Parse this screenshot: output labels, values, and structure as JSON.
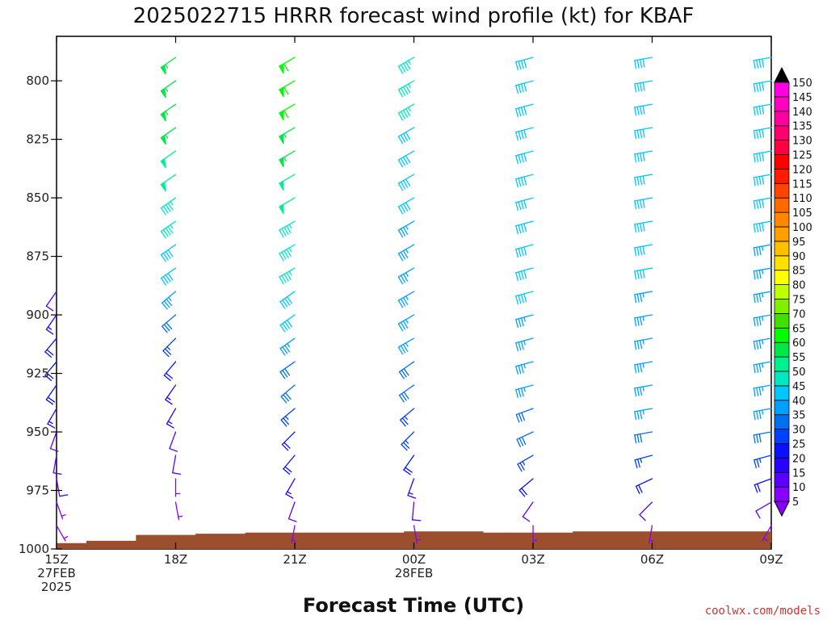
{
  "chart_data": {
    "type": "wind-profile",
    "title": "2025022715 HRRR forecast wind profile (kt) for KBAF",
    "xlabel": "Forecast Time (UTC)",
    "credit": "coolwx.com/models",
    "y_ticks": [
      800,
      825,
      850,
      875,
      900,
      925,
      950,
      975,
      1000
    ],
    "ylim": [
      1000,
      781
    ],
    "x_ticks": [
      {
        "h": 0,
        "lines": [
          "15Z",
          "27FEB",
          "2025"
        ]
      },
      {
        "h": 3,
        "lines": [
          "18Z"
        ]
      },
      {
        "h": 6,
        "lines": [
          "21Z"
        ]
      },
      {
        "h": 9,
        "lines": [
          "00Z",
          "28FEB"
        ]
      },
      {
        "h": 12,
        "lines": [
          "03Z"
        ]
      },
      {
        "h": 15,
        "lines": [
          "06Z"
        ]
      },
      {
        "h": 18,
        "lines": [
          "09Z"
        ]
      }
    ],
    "xlim": [
      0,
      18
    ],
    "profile_hours": [
      0,
      3,
      6,
      9,
      12,
      15,
      18
    ],
    "surface_pressure": [
      {
        "h": 0,
        "p": 997.5
      },
      {
        "h": 0.75,
        "p": 996.5
      },
      {
        "h": 2.0,
        "p": 994.0
      },
      {
        "h": 3.5,
        "p": 993.5
      },
      {
        "h": 4.75,
        "p": 993.0
      },
      {
        "h": 8.75,
        "p": 992.5
      },
      {
        "h": 10.75,
        "p": 993.0
      },
      {
        "h": 13.0,
        "p": 992.5
      },
      {
        "h": 18,
        "p": 992.5
      }
    ],
    "ground_color": "#9b4f2c",
    "colorbar": {
      "ticks": [
        5,
        10,
        15,
        20,
        25,
        30,
        35,
        40,
        45,
        50,
        55,
        60,
        65,
        70,
        75,
        80,
        85,
        90,
        95,
        100,
        105,
        110,
        115,
        120,
        125,
        130,
        135,
        140,
        145,
        150
      ],
      "colors": [
        "#8800ff",
        "#5a00ff",
        "#2a00ff",
        "#0a10ff",
        "#0040ff",
        "#0070f0",
        "#00a0ff",
        "#00c8ff",
        "#00e8c0",
        "#00f090",
        "#00e848",
        "#00ff00",
        "#40e000",
        "#80f000",
        "#c0ff00",
        "#ffff00",
        "#ffe000",
        "#ffc000",
        "#ffa000",
        "#ff8800",
        "#ff6a00",
        "#ff4400",
        "#ff1a00",
        "#ff0000",
        "#ff0040",
        "#ff0070",
        "#ff00a0",
        "#ff00c0",
        "#ff00e0",
        "#000000"
      ]
    },
    "wind_levels": [
      790,
      800,
      810,
      820,
      830,
      840,
      850,
      860,
      870,
      880,
      890,
      900,
      910,
      920,
      930,
      940,
      950,
      960,
      970,
      980,
      990
    ],
    "wind_profiles": [
      {
        "h": 0,
        "barbs": [
          {
            "p": 890,
            "dir": 215,
            "spd": 10
          },
          {
            "p": 900,
            "dir": 215,
            "spd": 15
          },
          {
            "p": 910,
            "dir": 220,
            "spd": 20
          },
          {
            "p": 920,
            "dir": 220,
            "spd": 20
          },
          {
            "p": 930,
            "dir": 215,
            "spd": 20
          },
          {
            "p": 940,
            "dir": 210,
            "spd": 15
          },
          {
            "p": 950,
            "dir": 200,
            "spd": 10
          },
          {
            "p": 960,
            "dir": 190,
            "spd": 10
          },
          {
            "p": 970,
            "dir": 170,
            "spd": 10
          },
          {
            "p": 980,
            "dir": 160,
            "spd": 5
          },
          {
            "p": 990,
            "dir": 150,
            "spd": 5
          }
        ]
      },
      {
        "h": 3,
        "barbs": [
          {
            "p": 790,
            "dir": 235,
            "spd": 55
          },
          {
            "p": 800,
            "dir": 235,
            "spd": 55
          },
          {
            "p": 810,
            "dir": 235,
            "spd": 55
          },
          {
            "p": 820,
            "dir": 235,
            "spd": 55
          },
          {
            "p": 830,
            "dir": 235,
            "spd": 50
          },
          {
            "p": 840,
            "dir": 235,
            "spd": 50
          },
          {
            "p": 850,
            "dir": 235,
            "spd": 45
          },
          {
            "p": 860,
            "dir": 235,
            "spd": 45
          },
          {
            "p": 870,
            "dir": 235,
            "spd": 40
          },
          {
            "p": 880,
            "dir": 235,
            "spd": 40
          },
          {
            "p": 890,
            "dir": 230,
            "spd": 35
          },
          {
            "p": 900,
            "dir": 230,
            "spd": 30
          },
          {
            "p": 910,
            "dir": 225,
            "spd": 25
          },
          {
            "p": 920,
            "dir": 220,
            "spd": 20
          },
          {
            "p": 930,
            "dir": 215,
            "spd": 15
          },
          {
            "p": 940,
            "dir": 210,
            "spd": 15
          },
          {
            "p": 950,
            "dir": 200,
            "spd": 10
          },
          {
            "p": 960,
            "dir": 190,
            "spd": 10
          },
          {
            "p": 970,
            "dir": 180,
            "spd": 5
          },
          {
            "p": 980,
            "dir": 170,
            "spd": 5
          }
        ]
      },
      {
        "h": 6,
        "barbs": [
          {
            "p": 790,
            "dir": 240,
            "spd": 60
          },
          {
            "p": 800,
            "dir": 240,
            "spd": 60
          },
          {
            "p": 810,
            "dir": 240,
            "spd": 60
          },
          {
            "p": 820,
            "dir": 240,
            "spd": 55
          },
          {
            "p": 830,
            "dir": 240,
            "spd": 55
          },
          {
            "p": 840,
            "dir": 240,
            "spd": 50
          },
          {
            "p": 850,
            "dir": 240,
            "spd": 50
          },
          {
            "p": 860,
            "dir": 240,
            "spd": 45
          },
          {
            "p": 870,
            "dir": 240,
            "spd": 45
          },
          {
            "p": 880,
            "dir": 240,
            "spd": 45
          },
          {
            "p": 890,
            "dir": 235,
            "spd": 40
          },
          {
            "p": 900,
            "dir": 235,
            "spd": 40
          },
          {
            "p": 910,
            "dir": 235,
            "spd": 35
          },
          {
            "p": 920,
            "dir": 235,
            "spd": 30
          },
          {
            "p": 930,
            "dir": 230,
            "spd": 30
          },
          {
            "p": 940,
            "dir": 230,
            "spd": 25
          },
          {
            "p": 950,
            "dir": 225,
            "spd": 20
          },
          {
            "p": 960,
            "dir": 220,
            "spd": 20
          },
          {
            "p": 970,
            "dir": 210,
            "spd": 15
          },
          {
            "p": 980,
            "dir": 200,
            "spd": 10
          },
          {
            "p": 990,
            "dir": 190,
            "spd": 5
          }
        ]
      },
      {
        "h": 9,
        "barbs": [
          {
            "p": 790,
            "dir": 240,
            "spd": 45
          },
          {
            "p": 800,
            "dir": 240,
            "spd": 45
          },
          {
            "p": 810,
            "dir": 240,
            "spd": 45
          },
          {
            "p": 820,
            "dir": 240,
            "spd": 40
          },
          {
            "p": 830,
            "dir": 240,
            "spd": 40
          },
          {
            "p": 840,
            "dir": 240,
            "spd": 40
          },
          {
            "p": 850,
            "dir": 240,
            "spd": 40
          },
          {
            "p": 860,
            "dir": 240,
            "spd": 35
          },
          {
            "p": 870,
            "dir": 240,
            "spd": 35
          },
          {
            "p": 880,
            "dir": 240,
            "spd": 35
          },
          {
            "p": 890,
            "dir": 240,
            "spd": 35
          },
          {
            "p": 900,
            "dir": 240,
            "spd": 35
          },
          {
            "p": 910,
            "dir": 240,
            "spd": 35
          },
          {
            "p": 920,
            "dir": 235,
            "spd": 30
          },
          {
            "p": 930,
            "dir": 235,
            "spd": 30
          },
          {
            "p": 940,
            "dir": 230,
            "spd": 25
          },
          {
            "p": 950,
            "dir": 225,
            "spd": 25
          },
          {
            "p": 960,
            "dir": 215,
            "spd": 20
          },
          {
            "p": 970,
            "dir": 200,
            "spd": 15
          },
          {
            "p": 980,
            "dir": 185,
            "spd": 10
          },
          {
            "p": 990,
            "dir": 170,
            "spd": 5
          }
        ]
      },
      {
        "h": 12,
        "barbs": [
          {
            "p": 790,
            "dir": 255,
            "spd": 40
          },
          {
            "p": 800,
            "dir": 255,
            "spd": 40
          },
          {
            "p": 810,
            "dir": 255,
            "spd": 40
          },
          {
            "p": 820,
            "dir": 255,
            "spd": 40
          },
          {
            "p": 830,
            "dir": 255,
            "spd": 40
          },
          {
            "p": 840,
            "dir": 255,
            "spd": 40
          },
          {
            "p": 850,
            "dir": 255,
            "spd": 40
          },
          {
            "p": 860,
            "dir": 255,
            "spd": 40
          },
          {
            "p": 870,
            "dir": 255,
            "spd": 40
          },
          {
            "p": 880,
            "dir": 255,
            "spd": 40
          },
          {
            "p": 890,
            "dir": 255,
            "spd": 40
          },
          {
            "p": 900,
            "dir": 255,
            "spd": 35
          },
          {
            "p": 910,
            "dir": 255,
            "spd": 35
          },
          {
            "p": 920,
            "dir": 255,
            "spd": 35
          },
          {
            "p": 930,
            "dir": 255,
            "spd": 35
          },
          {
            "p": 940,
            "dir": 250,
            "spd": 30
          },
          {
            "p": 950,
            "dir": 245,
            "spd": 30
          },
          {
            "p": 960,
            "dir": 240,
            "spd": 25
          },
          {
            "p": 970,
            "dir": 230,
            "spd": 20
          },
          {
            "p": 980,
            "dir": 215,
            "spd": 10
          },
          {
            "p": 990,
            "dir": 180,
            "spd": 5
          }
        ]
      },
      {
        "h": 15,
        "barbs": [
          {
            "p": 790,
            "dir": 260,
            "spd": 40
          },
          {
            "p": 800,
            "dir": 260,
            "spd": 40
          },
          {
            "p": 810,
            "dir": 260,
            "spd": 40
          },
          {
            "p": 820,
            "dir": 260,
            "spd": 40
          },
          {
            "p": 830,
            "dir": 260,
            "spd": 40
          },
          {
            "p": 840,
            "dir": 260,
            "spd": 40
          },
          {
            "p": 850,
            "dir": 260,
            "spd": 40
          },
          {
            "p": 860,
            "dir": 260,
            "spd": 40
          },
          {
            "p": 870,
            "dir": 260,
            "spd": 40
          },
          {
            "p": 880,
            "dir": 260,
            "spd": 40
          },
          {
            "p": 890,
            "dir": 260,
            "spd": 35
          },
          {
            "p": 900,
            "dir": 260,
            "spd": 35
          },
          {
            "p": 910,
            "dir": 260,
            "spd": 35
          },
          {
            "p": 920,
            "dir": 260,
            "spd": 35
          },
          {
            "p": 930,
            "dir": 260,
            "spd": 35
          },
          {
            "p": 940,
            "dir": 260,
            "spd": 35
          },
          {
            "p": 950,
            "dir": 260,
            "spd": 30
          },
          {
            "p": 960,
            "dir": 255,
            "spd": 25
          },
          {
            "p": 970,
            "dir": 245,
            "spd": 20
          },
          {
            "p": 980,
            "dir": 225,
            "spd": 10
          },
          {
            "p": 990,
            "dir": 190,
            "spd": 5
          }
        ]
      },
      {
        "h": 18,
        "barbs": [
          {
            "p": 790,
            "dir": 260,
            "spd": 40
          },
          {
            "p": 800,
            "dir": 260,
            "spd": 40
          },
          {
            "p": 810,
            "dir": 260,
            "spd": 40
          },
          {
            "p": 820,
            "dir": 260,
            "spd": 40
          },
          {
            "p": 830,
            "dir": 260,
            "spd": 40
          },
          {
            "p": 840,
            "dir": 260,
            "spd": 40
          },
          {
            "p": 850,
            "dir": 260,
            "spd": 40
          },
          {
            "p": 860,
            "dir": 260,
            "spd": 40
          },
          {
            "p": 870,
            "dir": 260,
            "spd": 35
          },
          {
            "p": 880,
            "dir": 260,
            "spd": 35
          },
          {
            "p": 890,
            "dir": 260,
            "spd": 35
          },
          {
            "p": 900,
            "dir": 260,
            "spd": 35
          },
          {
            "p": 910,
            "dir": 260,
            "spd": 35
          },
          {
            "p": 920,
            "dir": 260,
            "spd": 35
          },
          {
            "p": 930,
            "dir": 260,
            "spd": 35
          },
          {
            "p": 940,
            "dir": 260,
            "spd": 35
          },
          {
            "p": 950,
            "dir": 260,
            "spd": 30
          },
          {
            "p": 960,
            "dir": 255,
            "spd": 25
          },
          {
            "p": 970,
            "dir": 250,
            "spd": 20
          },
          {
            "p": 980,
            "dir": 240,
            "spd": 10
          },
          {
            "p": 990,
            "dir": 210,
            "spd": 5
          }
        ]
      }
    ]
  }
}
